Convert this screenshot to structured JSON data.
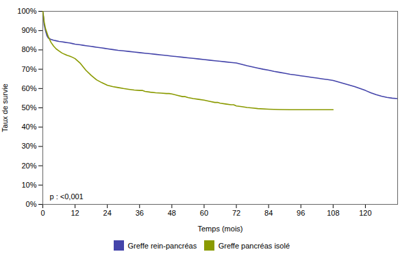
{
  "chart_data": {
    "type": "line",
    "xlabel": "Temps (mois)",
    "ylabel": "Taux de survie",
    "annotation": "p : <0,001",
    "xlim": [
      0,
      132
    ],
    "ylim": [
      0,
      1.0
    ],
    "xticks": [
      0,
      12,
      24,
      36,
      48,
      60,
      72,
      84,
      96,
      108,
      120
    ],
    "yticks": [
      {
        "value": 0.0,
        "label": "0%"
      },
      {
        "value": 0.1,
        "label": "10%"
      },
      {
        "value": 0.2,
        "label": "20%"
      },
      {
        "value": 0.3,
        "label": "30%"
      },
      {
        "value": 0.4,
        "label": "40%"
      },
      {
        "value": 0.5,
        "label": "50%"
      },
      {
        "value": 0.6,
        "label": "60%"
      },
      {
        "value": 0.7,
        "label": "70%"
      },
      {
        "value": 0.8,
        "label": "80%"
      },
      {
        "value": 0.9,
        "label": "90%"
      },
      {
        "value": 1.0,
        "label": "100%"
      }
    ],
    "grid": false,
    "legend": "bottom",
    "series": [
      {
        "name": "Greffe rein-pancréas",
        "color": "#4444aa",
        "x": [
          0,
          0.3,
          0.5,
          1,
          1.5,
          2,
          3,
          4,
          5,
          6,
          7,
          8,
          9,
          10,
          11,
          12,
          13,
          14,
          15,
          16,
          17,
          18,
          19,
          20,
          21,
          22,
          23,
          24,
          26,
          28,
          30,
          32,
          34,
          36,
          38,
          40,
          42,
          44,
          46,
          48,
          50,
          52,
          54,
          56,
          58,
          60,
          62,
          64,
          66,
          68,
          70,
          72,
          74,
          76,
          78,
          80,
          82,
          84,
          86,
          88,
          90,
          92,
          94,
          96,
          98,
          100,
          102,
          104,
          106,
          108,
          110,
          112,
          114,
          116,
          118,
          120,
          122,
          124,
          126,
          128,
          130,
          132
        ],
        "values": [
          1.0,
          0.965,
          0.93,
          0.9,
          0.875,
          0.862,
          0.855,
          0.85,
          0.847,
          0.844,
          0.842,
          0.84,
          0.838,
          0.836,
          0.833,
          0.83,
          0.828,
          0.826,
          0.824,
          0.822,
          0.82,
          0.818,
          0.816,
          0.814,
          0.812,
          0.81,
          0.808,
          0.806,
          0.802,
          0.798,
          0.795,
          0.792,
          0.789,
          0.786,
          0.783,
          0.78,
          0.777,
          0.774,
          0.771,
          0.768,
          0.765,
          0.762,
          0.759,
          0.756,
          0.753,
          0.75,
          0.747,
          0.744,
          0.741,
          0.738,
          0.735,
          0.732,
          0.725,
          0.718,
          0.712,
          0.706,
          0.7,
          0.695,
          0.689,
          0.684,
          0.679,
          0.674,
          0.67,
          0.666,
          0.662,
          0.658,
          0.654,
          0.65,
          0.646,
          0.642,
          0.634,
          0.626,
          0.618,
          0.61,
          0.6,
          0.59,
          0.578,
          0.568,
          0.56,
          0.554,
          0.55,
          0.548
        ]
      },
      {
        "name": "Greffe pancréas isolé",
        "color": "#8a9a00",
        "x": [
          0,
          0.3,
          0.5,
          1,
          2,
          3,
          4,
          5,
          6,
          7,
          8,
          9,
          10,
          11,
          12,
          14,
          16,
          18,
          20,
          22,
          24,
          26,
          28,
          30,
          32,
          34,
          36,
          37,
          38,
          40,
          42,
          44,
          46,
          47,
          48,
          50,
          52,
          53,
          54,
          56,
          58,
          60,
          62,
          64,
          65,
          66,
          68,
          70,
          71,
          72,
          74,
          76,
          78,
          80,
          84,
          88,
          92,
          96,
          100,
          104,
          108
        ],
        "values": [
          1.0,
          0.97,
          0.945,
          0.91,
          0.87,
          0.84,
          0.82,
          0.805,
          0.795,
          0.785,
          0.778,
          0.772,
          0.768,
          0.762,
          0.755,
          0.73,
          0.695,
          0.668,
          0.645,
          0.63,
          0.617,
          0.61,
          0.605,
          0.6,
          0.596,
          0.592,
          0.59,
          0.59,
          0.585,
          0.581,
          0.578,
          0.576,
          0.574,
          0.574,
          0.572,
          0.565,
          0.558,
          0.558,
          0.553,
          0.548,
          0.544,
          0.54,
          0.534,
          0.528,
          0.528,
          0.524,
          0.52,
          0.516,
          0.516,
          0.51,
          0.506,
          0.502,
          0.499,
          0.496,
          0.493,
          0.491,
          0.49,
          0.49,
          0.49,
          0.49,
          0.49
        ]
      }
    ]
  }
}
